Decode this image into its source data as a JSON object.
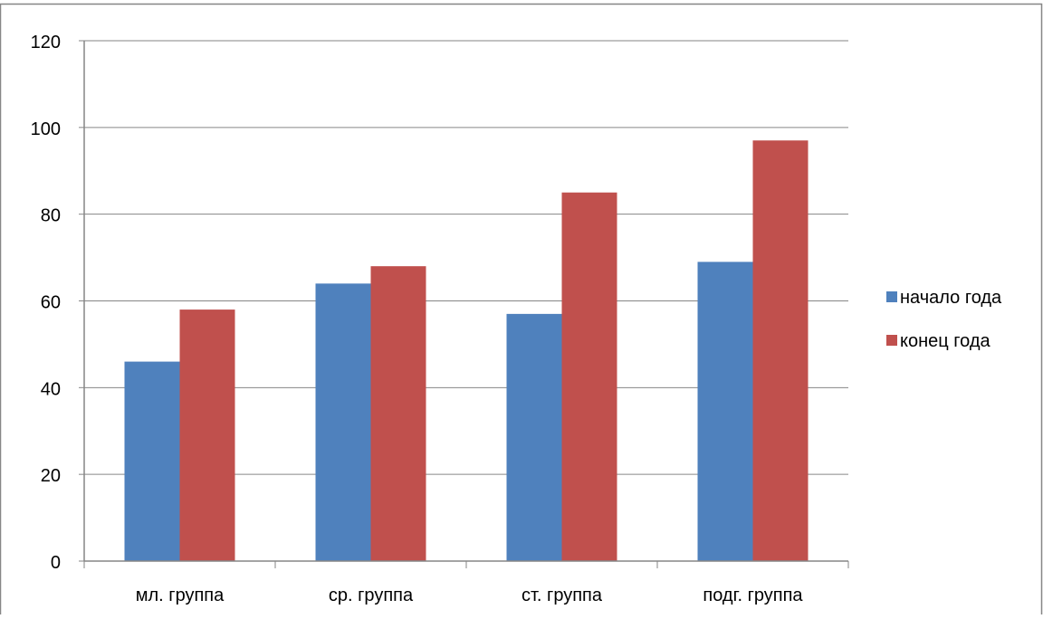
{
  "chart_data": {
    "type": "bar",
    "title": "",
    "categories": [
      "мл. группа",
      "ср. группа",
      "ст. группа",
      "подг. группа"
    ],
    "series": [
      {
        "name": "начало года",
        "values": [
          46,
          64,
          57,
          69
        ],
        "color": "#4f81bd"
      },
      {
        "name": "конец года",
        "values": [
          58,
          68,
          85,
          97
        ],
        "color": "#c0504d"
      }
    ],
    "yticks": [
      "0",
      "20",
      "40",
      "60",
      "80",
      "100",
      "120"
    ],
    "ylim": [
      0,
      120
    ],
    "grid": true,
    "legend_position": "right",
    "xlabel": "",
    "ylabel": ""
  }
}
